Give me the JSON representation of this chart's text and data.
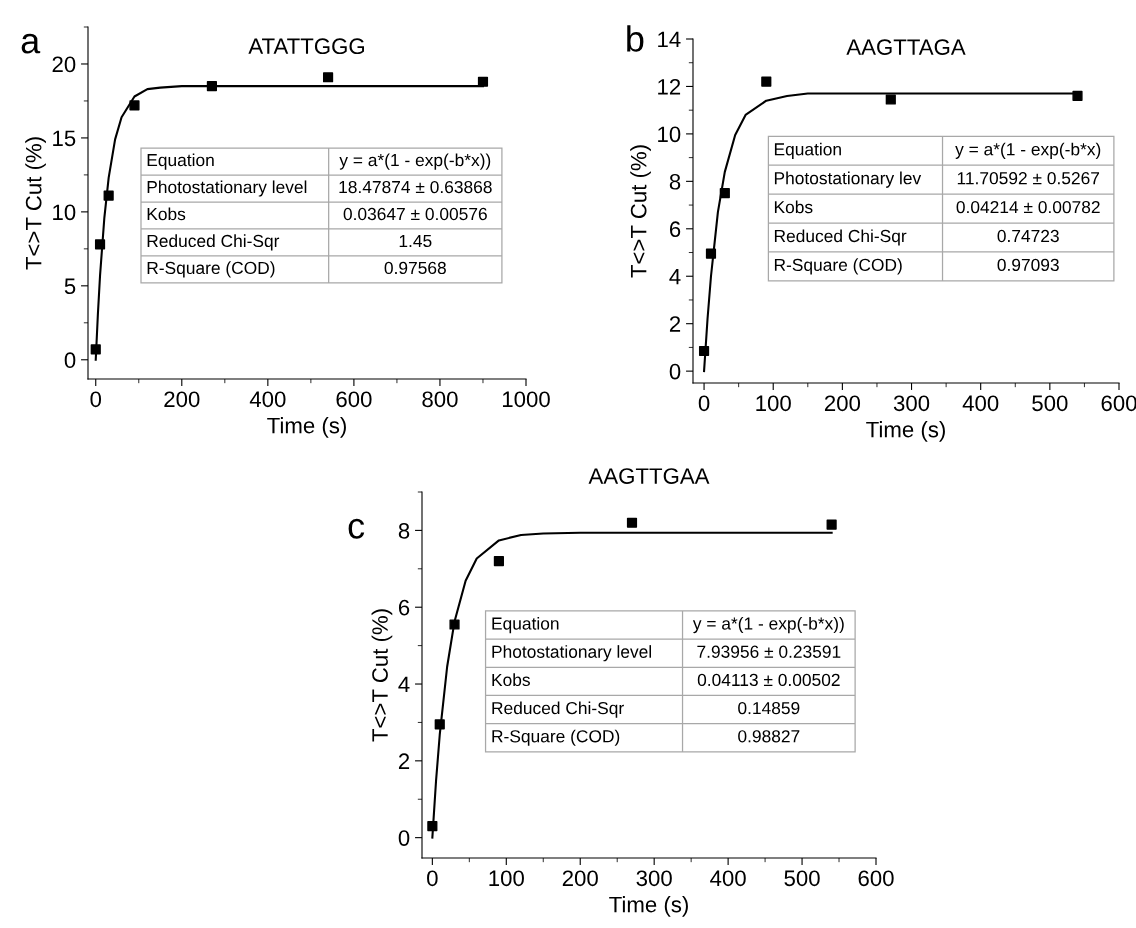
{
  "chart_data": [
    {
      "type": "scatter",
      "title": "ATATTGGG",
      "xlabel": "Time (s)",
      "ylabel": "T<>T Cut (%)",
      "marker": "square",
      "legend": false,
      "grid": false,
      "annotations": [
        "a",
        "Equation",
        "y = a*(1 - exp(-b*x))",
        "Photostationary level",
        "18.47874 ± 0.63868",
        "Kobs",
        "0.03647 ± 0.00576",
        "Reduced Chi-Sqr",
        "1.45",
        "R-Square (COD)",
        "0.97568"
      ],
      "xlim": [
        -18,
        1000
      ],
      "xticks": [
        0,
        200,
        400,
        600,
        800,
        1000
      ],
      "ylim": [
        -1.3,
        22.5
      ],
      "yticks": [
        0,
        5,
        10,
        15,
        20
      ],
      "series": [
        {
          "color": "#000000",
          "x": [
            0,
            10,
            30,
            90,
            270,
            540,
            900
          ],
          "values": [
            0.7,
            7.8,
            11.1,
            17.2,
            18.5,
            19.1,
            18.8
          ]
        },
        {
          "type": "line",
          "color": "#000000",
          "marker": "none",
          "x": [
            0,
            5,
            10,
            20,
            30,
            45,
            60,
            90,
            120,
            150,
            200,
            900
          ],
          "values": [
            0,
            3.1,
            5.7,
            9.6,
            12.3,
            14.9,
            16.4,
            17.8,
            18.3,
            18.4,
            18.5,
            18.5
          ]
        }
      ]
    },
    {
      "type": "scatter",
      "title": "AAGTTAGA",
      "xlabel": "Time (s)",
      "ylabel": "T<>T Cut (%)",
      "marker": "square",
      "legend": false,
      "grid": false,
      "annotations": [
        "b",
        "Equation",
        "y = a*(1 - exp(-b*x)",
        "Photostationary lev",
        "11.70592 ± 0.5267",
        "Kobs",
        "0.04214 ± 0.00782",
        "Reduced Chi-Sqr",
        "0.74723",
        "R-Square (COD)",
        "0.97093"
      ],
      "xlim": [
        -16,
        600
      ],
      "xticks": [
        0,
        100,
        200,
        300,
        400,
        500,
        600
      ],
      "ylim": [
        -0.5,
        14
      ],
      "yticks": [
        0,
        2,
        4,
        6,
        8,
        10,
        12,
        14
      ],
      "series": [
        {
          "color": "#000000",
          "x": [
            0,
            10,
            30,
            90,
            270,
            540
          ],
          "values": [
            0.85,
            4.95,
            7.5,
            12.2,
            11.45,
            11.6
          ]
        },
        {
          "type": "line",
          "color": "#000000",
          "marker": "none",
          "x": [
            0,
            5,
            10,
            20,
            30,
            45,
            60,
            90,
            120,
            150,
            200,
            540
          ],
          "values": [
            0,
            2.2,
            4.0,
            6.7,
            8.4,
            9.95,
            10.8,
            11.4,
            11.6,
            11.7,
            11.7,
            11.7
          ]
        }
      ]
    },
    {
      "type": "scatter",
      "title": "AAGTTGAA",
      "xlabel": "Time (s)",
      "ylabel": "T<>T Cut (%)",
      "marker": "square",
      "legend": false,
      "grid": false,
      "annotations": [
        "c",
        "Equation",
        "y = a*(1 - exp(-b*x))",
        "Photostationary level",
        "7.93956 ± 0.23591",
        "Kobs",
        "0.04113 ± 0.00502",
        "Reduced Chi-Sqr",
        "0.14859",
        "R-Square (COD)",
        "0.98827"
      ],
      "xlim": [
        -14,
        600
      ],
      "xticks": [
        0,
        100,
        200,
        300,
        400,
        500,
        600
      ],
      "ylim": [
        -0.53,
        9
      ],
      "yticks": [
        0,
        2,
        4,
        6,
        8
      ],
      "series": [
        {
          "color": "#000000",
          "x": [
            0,
            10,
            30,
            90,
            270,
            540
          ],
          "values": [
            0.3,
            2.95,
            5.55,
            7.2,
            8.2,
            8.15
          ]
        },
        {
          "type": "line",
          "color": "#000000",
          "marker": "none",
          "x": [
            0,
            5,
            10,
            20,
            30,
            45,
            60,
            90,
            120,
            150,
            200,
            540
          ],
          "values": [
            0,
            1.48,
            2.68,
            4.45,
            5.63,
            6.69,
            7.27,
            7.74,
            7.88,
            7.92,
            7.94,
            7.94
          ]
        }
      ]
    }
  ]
}
